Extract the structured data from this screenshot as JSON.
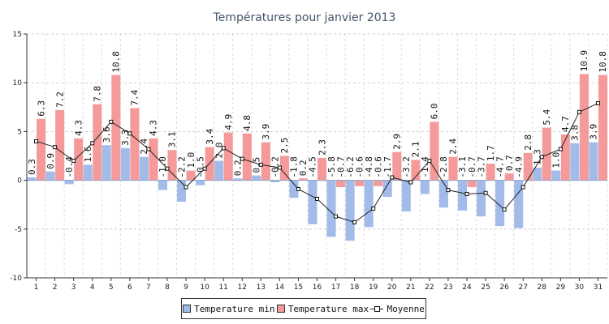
{
  "chart_data": {
    "type": "bar",
    "title": "Températures pour janvier 2013",
    "xlabel": "",
    "ylabel": "",
    "ylim": [
      -10,
      15
    ],
    "yticks": [
      -10,
      -5,
      0,
      5,
      10,
      15
    ],
    "grid": true,
    "legend_position": "bottom",
    "categories": [
      "1",
      "2",
      "3",
      "4",
      "5",
      "6",
      "7",
      "8",
      "9",
      "10",
      "11",
      "12",
      "13",
      "14",
      "15",
      "16",
      "17",
      "18",
      "19",
      "20",
      "21",
      "22",
      "23",
      "24",
      "25",
      "26",
      "27",
      "28",
      "29",
      "30",
      "31"
    ],
    "series": [
      {
        "name": "Temperature min",
        "kind": "bar",
        "color": "#a2bbe9",
        "values": [
          0.3,
          0.9,
          -0.4,
          1.6,
          3.6,
          3.3,
          2.4,
          -1.0,
          -2.2,
          -0.5,
          2.0,
          0.2,
          0.5,
          -0.2,
          -1.8,
          -4.5,
          -5.8,
          -6.2,
          -4.8,
          -1.7,
          -3.2,
          -1.4,
          -2.8,
          -3.1,
          -3.7,
          -4.7,
          -4.9,
          1.3,
          1.0,
          3.8,
          3.9
        ]
      },
      {
        "name": "Temperature max",
        "kind": "bar",
        "color": "#f49a9a",
        "values": [
          6.3,
          7.2,
          4.3,
          7.8,
          10.8,
          7.4,
          4.3,
          3.1,
          1.0,
          3.4,
          4.9,
          4.8,
          3.9,
          2.5,
          0.2,
          2.3,
          -0.7,
          -0.6,
          -0.6,
          2.9,
          2.1,
          6.0,
          2.4,
          -0.7,
          1.7,
          0.7,
          2.8,
          5.4,
          4.7,
          10.9,
          10.8
        ]
      },
      {
        "name": "Moyenne",
        "kind": "line",
        "color": "#222222",
        "values": [
          4.0,
          3.4,
          2.0,
          3.8,
          6.0,
          4.8,
          3.2,
          1.2,
          -0.7,
          1.2,
          3.3,
          2.2,
          1.6,
          1.3,
          -0.9,
          -1.9,
          -3.7,
          -4.3,
          -2.9,
          0.3,
          -0.2,
          2.0,
          -1.0,
          -1.4,
          -1.3,
          -3.0,
          -0.7,
          2.4,
          3.2,
          7.0,
          7.9
        ]
      }
    ]
  }
}
